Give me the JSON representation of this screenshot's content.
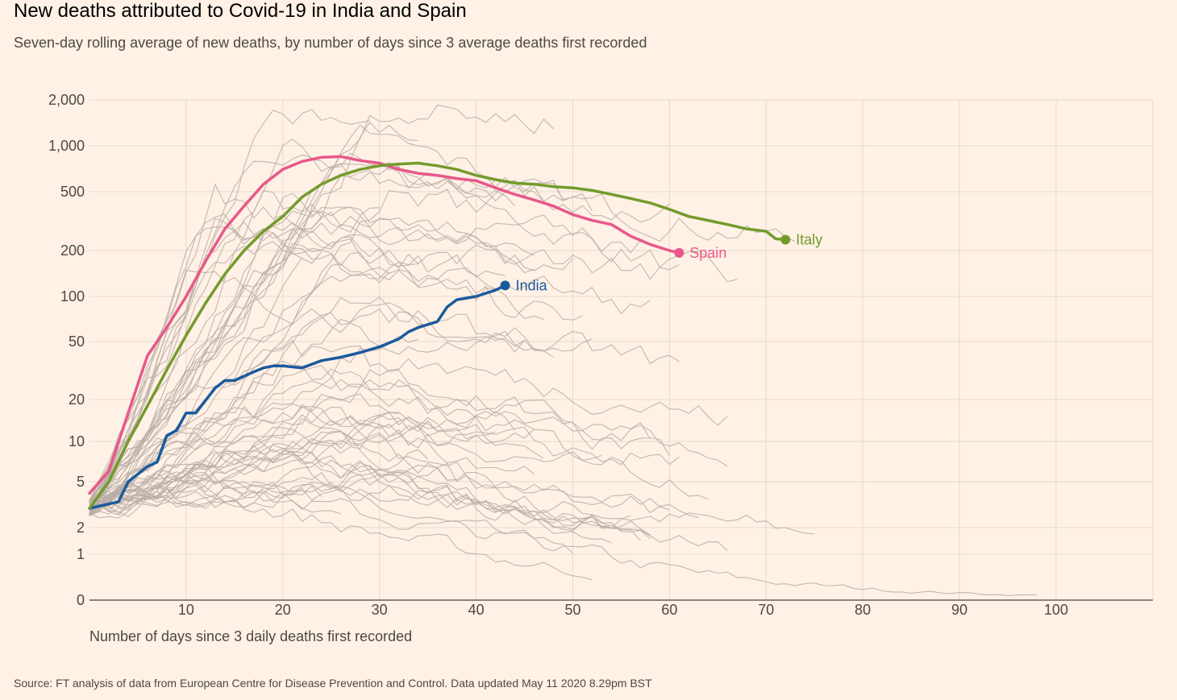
{
  "title": "New deaths attributed to Covid-19 in India and Spain",
  "subtitle": "Seven-day rolling average of new deaths, by number of days since 3 average deaths first recorded",
  "source": "Source: FT analysis of data from European Centre for Disease Prevention and Control. Data updated May 11 2020 8.29pm BST",
  "colors": {
    "background": "#fff1e5",
    "grid": "#e6d9ce",
    "background_series": "#b8ada6",
    "India": "#1a5a9e",
    "Spain": "#e8588a",
    "Italy": "#739b2c"
  },
  "chart_data": {
    "type": "line",
    "title": "New deaths attributed to Covid-19 in India and Spain",
    "xlabel": "Number of days since 3 daily deaths first recorded",
    "ylabel": "",
    "y_scale": "log",
    "xlim": [
      0,
      110
    ],
    "ylim": [
      0,
      2000
    ],
    "grid": true,
    "x_ticks": [
      10,
      20,
      30,
      40,
      50,
      60,
      70,
      80,
      90,
      100
    ],
    "x_tick_labels": [
      "10",
      "20",
      "30",
      "40",
      "50",
      "60",
      "70",
      "80",
      "90",
      "100"
    ],
    "y_ticks": [
      0,
      1,
      2,
      5,
      10,
      20,
      50,
      100,
      200,
      500,
      1000,
      2000
    ],
    "y_tick_labels": [
      "0",
      "1",
      "2",
      "5",
      "10",
      "20",
      "50",
      "100",
      "200",
      "500",
      "1,000",
      "2,000"
    ],
    "legend": "direct labels at line ends",
    "series": [
      {
        "name": "India",
        "color": "#1a5a9e",
        "x": [
          0,
          3,
          4,
          6,
          7,
          8,
          9,
          10,
          11,
          13,
          14,
          15,
          17,
          18,
          19,
          20,
          22,
          24,
          26,
          28,
          30,
          32,
          33,
          34,
          36,
          37,
          38,
          40,
          42,
          43
        ],
        "y": [
          3,
          3.4,
          5,
          6.5,
          7,
          11,
          12,
          16,
          16,
          24,
          27,
          27,
          31,
          33,
          34,
          34,
          33,
          37,
          39,
          42,
          46,
          52,
          58,
          62,
          68,
          85,
          95,
          100,
          110,
          118
        ]
      },
      {
        "name": "Spain",
        "color": "#e8588a",
        "x": [
          0,
          2,
          4,
          6,
          8,
          10,
          12,
          14,
          16,
          18,
          20,
          22,
          24,
          26,
          28,
          30,
          32,
          34,
          36,
          38,
          40,
          42,
          44,
          46,
          48,
          50,
          52,
          54,
          56,
          58,
          60,
          61
        ],
        "y": [
          4,
          6,
          16,
          40,
          62,
          100,
          170,
          280,
          400,
          560,
          700,
          790,
          840,
          850,
          800,
          770,
          700,
          660,
          640,
          610,
          590,
          530,
          480,
          440,
          400,
          350,
          320,
          300,
          250,
          220,
          200,
          193
        ]
      },
      {
        "name": "Italy",
        "color": "#739b2c",
        "x": [
          0,
          2,
          4,
          6,
          8,
          10,
          12,
          14,
          16,
          18,
          20,
          22,
          24,
          26,
          28,
          30,
          32,
          34,
          36,
          38,
          40,
          42,
          44,
          46,
          48,
          50,
          52,
          54,
          56,
          58,
          60,
          62,
          64,
          66,
          68,
          70,
          71,
          72
        ],
        "y": [
          3,
          5,
          10,
          18,
          32,
          55,
          90,
          140,
          200,
          270,
          340,
          460,
          560,
          640,
          700,
          740,
          760,
          770,
          740,
          700,
          640,
          600,
          570,
          560,
          540,
          530,
          510,
          480,
          450,
          420,
          380,
          340,
          320,
          300,
          280,
          270,
          240,
          237
        ]
      }
    ],
    "annotations": [
      "India",
      "Spain",
      "Italy"
    ]
  }
}
